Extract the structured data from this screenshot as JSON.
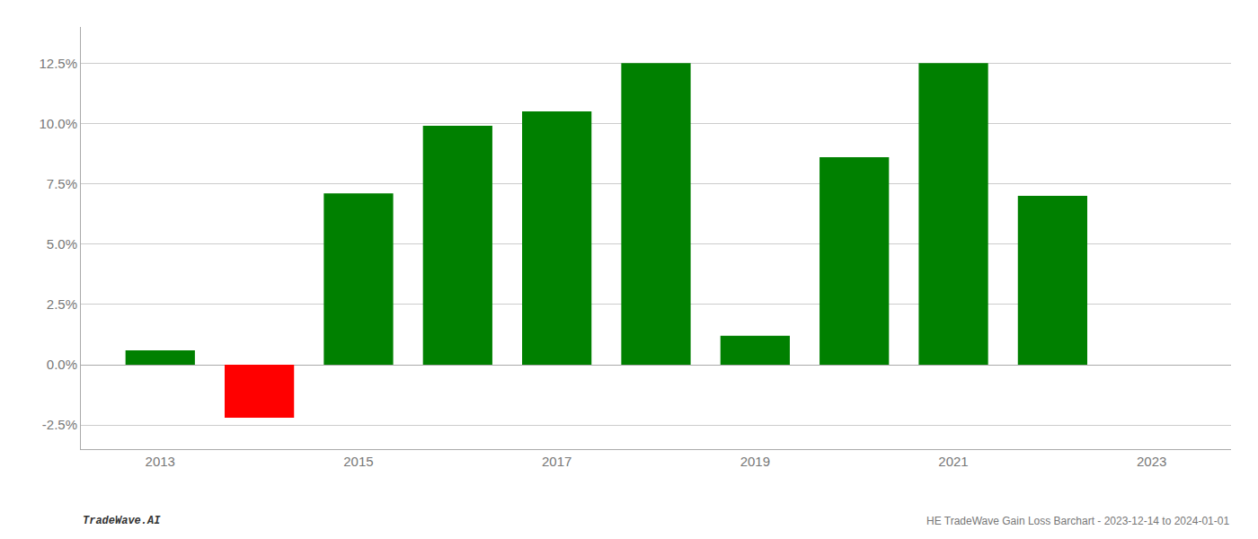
{
  "chart_data": {
    "type": "bar",
    "x": [
      2013,
      2014,
      2015,
      2016,
      2017,
      2018,
      2019,
      2020,
      2021,
      2022
    ],
    "values": [
      0.006,
      -0.022,
      0.071,
      0.099,
      0.105,
      0.125,
      0.012,
      0.086,
      0.125,
      0.07
    ],
    "colors": [
      "#008000",
      "#ff0000",
      "#008000",
      "#008000",
      "#008000",
      "#008000",
      "#008000",
      "#008000",
      "#008000",
      "#008000"
    ],
    "xlim": [
      2012.2,
      2023.8
    ],
    "xticks": [
      2013,
      2015,
      2017,
      2019,
      2021,
      2023
    ],
    "ylim": [
      -0.035,
      0.14
    ],
    "yticks": [
      {
        "value": -0.025,
        "label": "-2.5%"
      },
      {
        "value": 0.0,
        "label": "0.0%"
      },
      {
        "value": 0.025,
        "label": "2.5%"
      },
      {
        "value": 0.05,
        "label": "5.0%"
      },
      {
        "value": 0.075,
        "label": "7.5%"
      },
      {
        "value": 0.1,
        "label": "10.0%"
      },
      {
        "value": 0.125,
        "label": "12.5%"
      }
    ],
    "grid": true,
    "annotations": [
      "TradeWave.AI",
      "HE TradeWave Gain Loss Barchart - 2023-12-14 to 2024-01-01"
    ]
  }
}
